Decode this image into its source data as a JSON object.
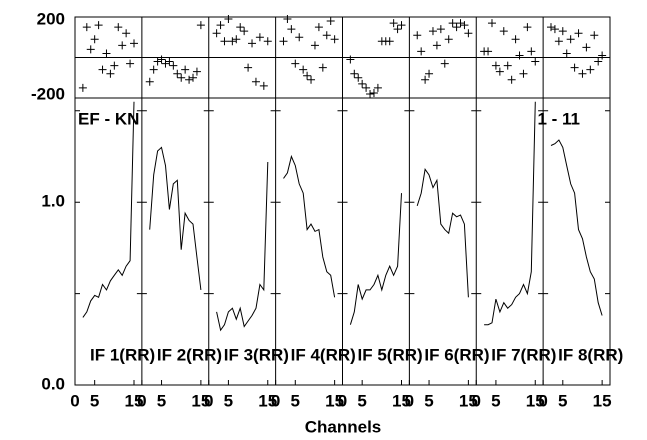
{
  "chart_data": {
    "type": "line",
    "baseline": "EF - KN",
    "timerange": "1 - 11",
    "xlabel": "Channels",
    "x": [
      2,
      3,
      4,
      5,
      6,
      7,
      8,
      9,
      10,
      11,
      12,
      13,
      14,
      15
    ],
    "xlim": [
      0,
      17
    ],
    "xticks": [
      0,
      5,
      15
    ],
    "ylim": [
      0,
      1.57
    ],
    "yticks": [
      {
        "value": 0,
        "label": "0.0"
      },
      {
        "value": 1,
        "label": "1.0"
      }
    ],
    "yminor": [
      0.5,
      1.5
    ],
    "phase_lim": [
      -200,
      200
    ],
    "phase_ticks": [
      -200,
      200
    ],
    "color": "#000000",
    "series": [
      {
        "name": "IF 1(RR)",
        "values": [
          0.37,
          0.4,
          0.46,
          0.49,
          0.48,
          0.55,
          0.52,
          0.57,
          0.6,
          0.63,
          0.6,
          0.65,
          0.68,
          1.55
        ],
        "phases": [
          -150,
          150,
          40,
          90,
          160,
          -60,
          20,
          -80,
          -40,
          150,
          60,
          120,
          -30,
          70
        ]
      },
      {
        "name": "IF 2(RR)",
        "values": [
          0.85,
          1.15,
          1.28,
          1.3,
          1.2,
          0.96,
          1.1,
          1.12,
          0.74,
          0.94,
          0.9,
          0.88,
          0.7,
          0.52
        ],
        "phases": [
          -120,
          -60,
          -20,
          -10,
          -30,
          -20,
          -40,
          -80,
          -100,
          -60,
          -110,
          -100,
          -70,
          160
        ]
      },
      {
        "name": "IF 3(RR)",
        "values": [
          0.4,
          0.3,
          0.33,
          0.4,
          0.42,
          0.36,
          0.42,
          0.32,
          0.35,
          0.38,
          0.42,
          0.55,
          0.52,
          1.22
        ],
        "phases": [
          120,
          160,
          80,
          190,
          80,
          90,
          150,
          130,
          -50,
          70,
          -120,
          100,
          -140,
          80
        ]
      },
      {
        "name": "IF 4(RR)",
        "values": [
          1.13,
          1.16,
          1.25,
          1.2,
          1.1,
          1.05,
          0.85,
          0.88,
          0.84,
          0.85,
          0.7,
          0.62,
          0.6,
          0.48
        ],
        "phases": [
          80,
          190,
          140,
          -30,
          100,
          -60,
          -90,
          -110,
          60,
          150,
          -50,
          110,
          180,
          90
        ]
      },
      {
        "name": "IF 5(RR)",
        "values": [
          0.33,
          0.4,
          0.55,
          0.47,
          0.52,
          0.52,
          0.55,
          0.6,
          0.52,
          0.6,
          0.65,
          0.6,
          0.65,
          1.05
        ],
        "phases": [
          -10,
          -80,
          -100,
          -130,
          -150,
          -180,
          -175,
          -150,
          80,
          80,
          80,
          170,
          140,
          160
        ]
      },
      {
        "name": "IF 6(RR)",
        "values": [
          0.98,
          1.05,
          1.18,
          1.15,
          1.08,
          1.12,
          0.88,
          0.85,
          0.83,
          0.94,
          0.92,
          0.93,
          0.88,
          0.48
        ],
        "phases": [
          110,
          30,
          -110,
          -80,
          130,
          60,
          140,
          -30,
          90,
          170,
          150,
          170,
          160,
          120
        ]
      },
      {
        "name": "IF 7(RR)",
        "values": [
          0.33,
          0.33,
          0.34,
          0.47,
          0.4,
          0.45,
          0.42,
          0.44,
          0.48,
          0.5,
          0.55,
          0.5,
          0.62,
          1.55
        ],
        "phases": [
          30,
          30,
          170,
          -40,
          -70,
          130,
          -40,
          -110,
          90,
          10,
          -80,
          150,
          30,
          -20
        ]
      },
      {
        "name": "IF 8(RR)",
        "values": [
          1.31,
          1.32,
          1.34,
          1.3,
          1.2,
          1.1,
          1.05,
          0.85,
          0.8,
          0.7,
          0.62,
          0.58,
          0.45,
          0.38
        ],
        "phases": [
          150,
          140,
          80,
          130,
          20,
          90,
          -50,
          120,
          -80,
          50,
          -60,
          110,
          -20,
          10
        ]
      }
    ]
  }
}
